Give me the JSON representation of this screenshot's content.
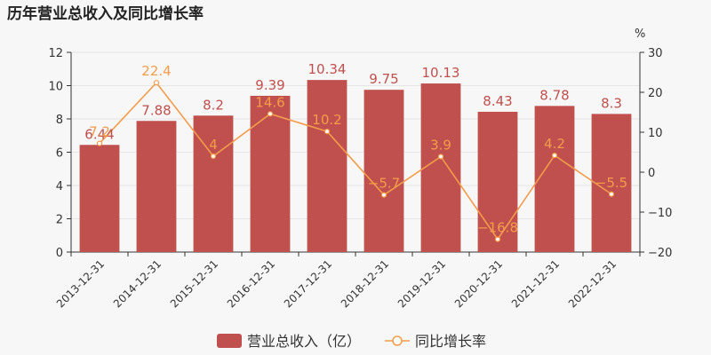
{
  "chart_data": {
    "type": "bar",
    "title": "历年营业总收入及同比增长率",
    "categories": [
      "2013-12-31",
      "2014-12-31",
      "2015-12-31",
      "2016-12-31",
      "2017-12-31",
      "2018-12-31",
      "2019-12-31",
      "2020-12-31",
      "2021-12-31",
      "2022-12-31"
    ],
    "series": [
      {
        "name": "营业总收入（亿）",
        "type": "bar",
        "axis": "left",
        "values": [
          6.44,
          7.88,
          8.2,
          9.39,
          10.34,
          9.75,
          10.13,
          8.43,
          8.78,
          8.3
        ],
        "labels": [
          "6.44",
          "7.88",
          "8.2",
          "9.39",
          "10.34",
          "9.75",
          "10.13",
          "8.43",
          "8.78",
          "8.3"
        ]
      },
      {
        "name": "同比增长率",
        "type": "line",
        "axis": "right",
        "values": [
          7.2,
          22.4,
          4,
          14.6,
          10.2,
          -5.7,
          3.9,
          -16.8,
          4.2,
          -5.5
        ],
        "labels": [
          "7.2",
          "22.4",
          "4",
          "14.6",
          "10.2",
          "−5.7",
          "3.9",
          "−16.8",
          "4.2",
          "−5.5"
        ]
      }
    ],
    "left_axis": {
      "ylim": [
        0,
        12
      ],
      "ticks": [
        "0",
        "2",
        "4",
        "6",
        "8",
        "10",
        "12"
      ]
    },
    "right_axis": {
      "unit": "%",
      "ylim": [
        -20,
        30
      ],
      "ticks": [
        "−20",
        "−10",
        "0",
        "10",
        "20",
        "30"
      ]
    },
    "legend": "bottom-center",
    "colors": {
      "bar": "#c0504d",
      "line": "#f39c4b",
      "grid": "#e6e6e6",
      "axis": "#333333"
    }
  }
}
